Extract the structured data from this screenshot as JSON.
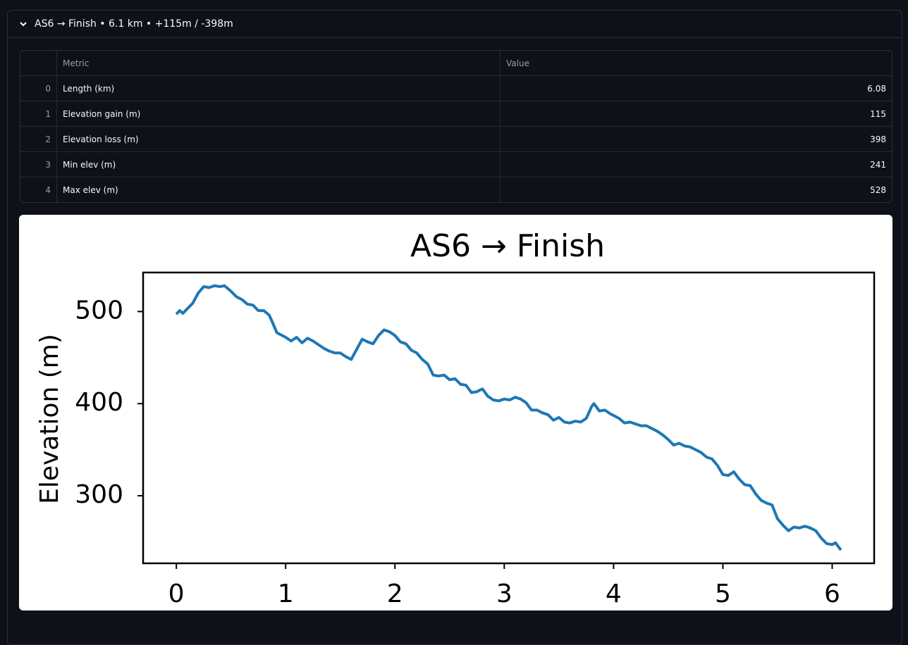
{
  "expander": {
    "label": "AS6 → Finish • 6.1 km • +115m / -398m"
  },
  "table": {
    "columns": [
      "Metric",
      "Value"
    ],
    "rows": [
      [
        0,
        "Length (km)",
        6.08
      ],
      [
        1,
        "Elevation gain (m)",
        115
      ],
      [
        2,
        "Elevation loss (m)",
        398
      ],
      [
        3,
        "Min elev (m)",
        241
      ],
      [
        4,
        "Max elev (m)",
        528
      ]
    ]
  },
  "chart_data": {
    "type": "line",
    "title": "AS6 → Finish",
    "y_label": "Elevation (m)",
    "color": "#1f77b4",
    "x": [
      0,
      0.03,
      0.06,
      0.1,
      0.15,
      0.2,
      0.25,
      0.3,
      0.35,
      0.4,
      0.44,
      0.5,
      0.55,
      0.6,
      0.65,
      0.7,
      0.75,
      0.8,
      0.85,
      0.88,
      0.92,
      1.0,
      1.05,
      1.1,
      1.15,
      1.2,
      1.25,
      1.3,
      1.35,
      1.4,
      1.45,
      1.5,
      1.55,
      1.6,
      1.65,
      1.7,
      1.75,
      1.8,
      1.85,
      1.9,
      1.95,
      2.0,
      2.05,
      2.1,
      2.15,
      2.2,
      2.25,
      2.3,
      2.35,
      2.4,
      2.45,
      2.5,
      2.55,
      2.6,
      2.65,
      2.7,
      2.75,
      2.8,
      2.85,
      2.9,
      2.95,
      3.0,
      3.05,
      3.1,
      3.15,
      3.2,
      3.25,
      3.3,
      3.35,
      3.4,
      3.45,
      3.5,
      3.55,
      3.6,
      3.65,
      3.7,
      3.75,
      3.8,
      3.82,
      3.87,
      3.92,
      3.97,
      4.05,
      4.1,
      4.15,
      4.2,
      4.25,
      4.3,
      4.35,
      4.4,
      4.45,
      4.5,
      4.55,
      4.6,
      4.65,
      4.7,
      4.75,
      4.8,
      4.85,
      4.9,
      4.95,
      5.0,
      5.05,
      5.1,
      5.15,
      5.2,
      5.25,
      5.3,
      5.35,
      5.4,
      5.45,
      5.5,
      5.55,
      5.6,
      5.65,
      5.7,
      5.75,
      5.8,
      5.85,
      5.9,
      5.95,
      6.0,
      6.03,
      6.08
    ],
    "values": [
      497,
      501,
      498,
      503,
      509,
      520,
      527,
      526,
      528,
      527,
      528,
      522,
      516,
      513,
      508,
      507,
      501,
      501,
      496,
      488,
      477,
      472,
      468,
      472,
      466,
      471,
      468,
      464,
      460,
      457,
      455,
      455,
      451,
      448,
      459,
      470,
      467,
      465,
      474,
      480,
      478,
      474,
      467,
      465,
      458,
      455,
      448,
      443,
      431,
      430,
      431,
      426,
      427,
      421,
      420,
      412,
      413,
      416,
      408,
      404,
      403,
      405,
      404,
      407,
      405,
      401,
      393,
      393,
      390,
      388,
      382,
      385,
      380,
      379,
      381,
      380,
      384,
      397,
      400,
      392,
      393,
      389,
      384,
      379,
      380,
      378,
      376,
      376,
      373,
      370,
      366,
      361,
      355,
      357,
      354,
      353,
      350,
      347,
      342,
      340,
      333,
      323,
      322,
      326,
      318,
      312,
      311,
      302,
      295,
      292,
      290,
      275,
      268,
      262,
      266,
      265,
      267,
      265,
      262,
      254,
      248,
      247,
      249,
      241
    ],
    "xlim": [
      -0.304,
      6.384
    ],
    "ylim": [
      226.65,
      542.35
    ],
    "xticks": [
      0,
      1,
      2,
      3,
      4,
      5,
      6
    ],
    "yticks": [
      300,
      400,
      500
    ]
  }
}
